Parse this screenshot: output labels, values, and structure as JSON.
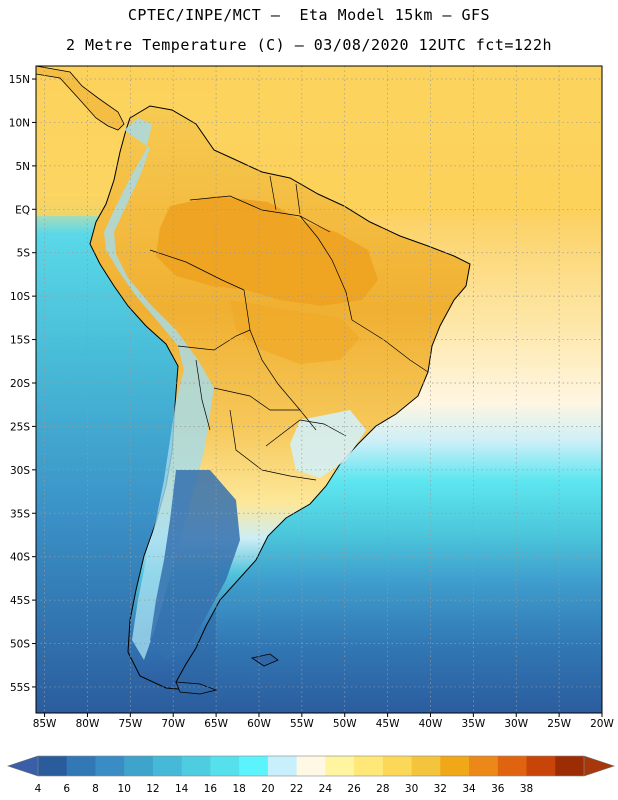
{
  "header": {
    "line1": "CPTEC/INPE/MCT –  Eta Model 15km – GFS",
    "line2": "2 Metre Temperature (C) – 03/08/2020 12UTC fct=122h"
  },
  "map": {
    "lat_labels": [
      "15N",
      "10N",
      "5N",
      "EQ",
      "5S",
      "10S",
      "15S",
      "20S",
      "25S",
      "30S",
      "35S",
      "40S",
      "45S",
      "50S",
      "55S"
    ],
    "lon_labels": [
      "85W",
      "80W",
      "75W",
      "70W",
      "65W",
      "60W",
      "55W",
      "50W",
      "45W",
      "40W",
      "35W",
      "30W",
      "25W",
      "20W"
    ],
    "lat_range": [
      16.5,
      -58
    ],
    "lon_range": [
      -86,
      -20
    ]
  },
  "colorbar": {
    "labels": [
      "4",
      "6",
      "8",
      "10",
      "12",
      "14",
      "16",
      "18",
      "20",
      "22",
      "24",
      "26",
      "28",
      "30",
      "32",
      "34",
      "36",
      "38"
    ],
    "colors": [
      "#2a5c9c",
      "#3278b4",
      "#3a8cc4",
      "#3ea4cc",
      "#46b8d8",
      "#4ecce0",
      "#56e0ec",
      "#5cf4fc",
      "#c8f0fc",
      "#fff8e4",
      "#fff4a0",
      "#ffe878",
      "#fcd858",
      "#f4c43c",
      "#f0a818",
      "#ec8818",
      "#e06410",
      "#c84408",
      "#9c2c04"
    ],
    "low_color": "#3a5fa8",
    "high_color": "#a8380c"
  },
  "colors": {
    "ocean_north": "#fdd86a",
    "ocean_south": "#2f6aa8",
    "land_warm": "#f5c24a",
    "land_hot": "#eea420",
    "andes": "#9bd8ee"
  }
}
